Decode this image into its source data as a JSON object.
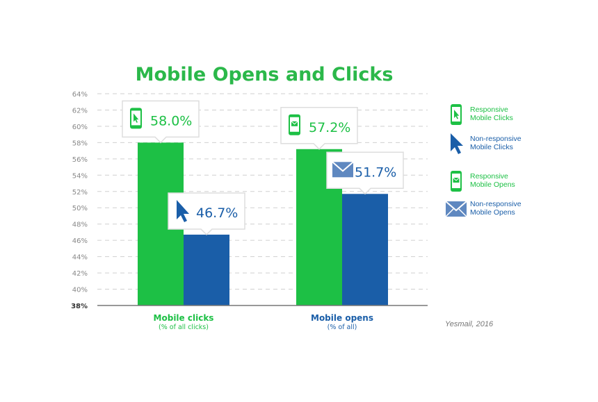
{
  "colors": {
    "green": "#1dc045",
    "blue": "#1a5ea8",
    "grid": "#cfcfcf",
    "axis": "#777777",
    "title": "#2bb84a"
  },
  "chart_data": {
    "type": "bar",
    "title": "Mobile Opens and Clicks",
    "categories": [
      "Mobile clicks",
      "Mobile opens"
    ],
    "category_subtitles": [
      "(% of all clicks)",
      "(% of all)"
    ],
    "ylim": [
      38,
      64
    ],
    "yticks": [
      "38%",
      "40%",
      "42%",
      "44%",
      "46%",
      "48%",
      "50%",
      "52%",
      "54%",
      "56%",
      "58%",
      "60%",
      "62%",
      "64%"
    ],
    "grid": true,
    "legend_position": "right",
    "series": [
      {
        "legend_label": "Responsive\nMobile Clicks",
        "color": "#1dc045",
        "icon": "phone-cursor-icon",
        "values": [
          58.0,
          null
        ],
        "labels": [
          "58.0%",
          ""
        ]
      },
      {
        "legend_label": "Non-responsive\nMobile Clicks",
        "color": "#1a5ea8",
        "icon": "cursor-icon",
        "values": [
          46.7,
          null
        ],
        "labels": [
          "46.7%",
          ""
        ]
      },
      {
        "legend_label": "Responsive\nMobile Opens",
        "color": "#1dc045",
        "icon": "phone-envelope-icon",
        "values": [
          null,
          57.2
        ],
        "labels": [
          "",
          "57.2%"
        ]
      },
      {
        "legend_label": "Non-responsive\nMobile Opens",
        "color": "#1a5ea8",
        "icon": "envelope-icon",
        "values": [
          null,
          51.7
        ],
        "labels": [
          "",
          "51.7%"
        ]
      }
    ]
  },
  "source": "Yesmail, 2016"
}
